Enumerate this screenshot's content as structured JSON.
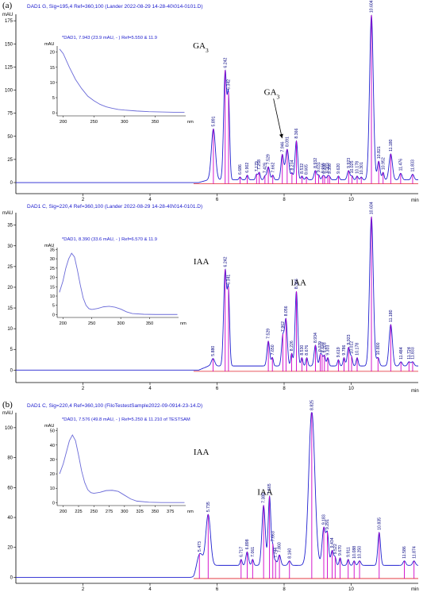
{
  "chart_data": [
    {
      "type": "line",
      "panel_label": "(a)",
      "header": "DAD1 G, Sig=195,4 Ref=360,100 (Lander 2022-08-29 14-28-40\\014-0101.D)",
      "ylabel": "mAU",
      "xlabel": "min",
      "ylim": [
        -12,
        182
      ],
      "xlim": [
        0,
        12
      ],
      "yticks": [
        0,
        25,
        50,
        75,
        100,
        125,
        150,
        175
      ],
      "xticks": [
        2,
        4,
        6,
        8,
        10
      ],
      "compound_labels": [
        {
          "text": "GA",
          "sub": "3",
          "x": 5.28,
          "y": 145
        },
        {
          "text": "GA",
          "sub": "3",
          "x": 7.4,
          "y": 95,
          "arrow_to": [
            7.94,
            48
          ]
        }
      ],
      "baseline": 0,
      "rise": {
        "start": 5.45,
        "end": 5.75,
        "level": 3
      },
      "peaks": [
        {
          "rt": 5.891,
          "height": 55,
          "width": 0.06
        },
        {
          "rt": 6.242,
          "height": 117,
          "width": 0.045
        },
        {
          "rt": 6.342,
          "height": 85,
          "width": 0.035
        },
        {
          "rt": 6.686,
          "height": 3,
          "width": 0.03
        },
        {
          "rt": 6.902,
          "height": 5,
          "width": 0.03
        },
        {
          "rt": 7.179,
          "height": 6,
          "width": 0.03
        },
        {
          "rt": 7.258,
          "height": 8,
          "width": 0.03
        },
        {
          "rt": 7.429,
          "height": 4,
          "width": 0.03
        },
        {
          "rt": 7.529,
          "height": 14,
          "width": 0.04
        },
        {
          "rt": 7.662,
          "height": 5,
          "width": 0.03
        },
        {
          "rt": 7.946,
          "height": 27,
          "width": 0.04
        },
        {
          "rt": 8.091,
          "height": 33,
          "width": 0.05
        },
        {
          "rt": 8.234,
          "height": 7,
          "width": 0.03
        },
        {
          "rt": 8.366,
          "height": 42,
          "width": 0.04
        },
        {
          "rt": 8.532,
          "height": 4,
          "width": 0.03
        },
        {
          "rt": 8.665,
          "height": 3,
          "width": 0.03
        },
        {
          "rt": 8.932,
          "height": 10,
          "width": 0.04
        },
        {
          "rt": 9.031,
          "height": 5,
          "width": 0.03
        },
        {
          "rt": 9.155,
          "height": 4,
          "width": 0.03
        },
        {
          "rt": 9.208,
          "height": 3,
          "width": 0.03
        },
        {
          "rt": 9.303,
          "height": 4,
          "width": 0.03
        },
        {
          "rt": 9.356,
          "height": 3,
          "width": 0.03
        },
        {
          "rt": 9.62,
          "height": 4,
          "width": 0.03
        },
        {
          "rt": 9.923,
          "height": 10,
          "width": 0.04
        },
        {
          "rt": 10.025,
          "height": 4,
          "width": 0.03
        },
        {
          "rt": 10.178,
          "height": 4,
          "width": 0.03
        },
        {
          "rt": 10.301,
          "height": 3,
          "width": 0.03
        },
        {
          "rt": 10.604,
          "height": 178,
          "width": 0.055
        },
        {
          "rt": 10.821,
          "height": 20,
          "width": 0.04
        },
        {
          "rt": 10.952,
          "height": 8,
          "width": 0.03
        },
        {
          "rt": 11.18,
          "height": 28,
          "width": 0.05
        },
        {
          "rt": 11.476,
          "height": 7,
          "width": 0.04
        },
        {
          "rt": 11.833,
          "height": 6,
          "width": 0.04
        }
      ],
      "inset": {
        "header": "*DAD1, 7.943 (23.9 mAU, - ) Ref=5.550 & 11.9",
        "ylabel": "mAU",
        "xlabel": "nm",
        "xlim": [
          190,
          400
        ],
        "ylim": [
          -1,
          22
        ],
        "xticks": [
          200,
          250,
          300,
          350
        ],
        "yticks": [
          0,
          5,
          10,
          15,
          20
        ],
        "x": [
          194,
          200,
          210,
          220,
          230,
          240,
          250,
          260,
          270,
          280,
          290,
          300,
          320,
          340,
          360,
          380,
          398
        ],
        "y": [
          21,
          19.5,
          15,
          11,
          8,
          5.5,
          4,
          2.8,
          2,
          1.5,
          1.1,
          0.9,
          0.6,
          0.4,
          0.3,
          0.2,
          0.2
        ]
      }
    },
    {
      "type": "line",
      "panel_label": "",
      "header": "DAD1 C, Sig=220,4 Ref=360,100 (Lander 2022-08-29 14-28-40\\014-0101.D)",
      "ylabel": "mAU",
      "xlabel": "min",
      "ylim": [
        -3,
        38
      ],
      "xlim": [
        0,
        12
      ],
      "yticks": [
        0,
        5,
        10,
        15,
        20,
        25,
        30,
        35
      ],
      "xticks": [
        2,
        4,
        6,
        8,
        10
      ],
      "compound_labels": [
        {
          "text": "IAA",
          "x": 5.3,
          "y": 25.5
        },
        {
          "text": "IAA",
          "x": 8.2,
          "y": 20.5
        }
      ],
      "baseline": 0,
      "rise": {
        "start": 5.45,
        "end": 5.75,
        "level": 1
      },
      "peaks": [
        {
          "rt": 5.88,
          "height": 1.8,
          "width": 0.05
        },
        {
          "rt": 6.242,
          "height": 23,
          "width": 0.045
        },
        {
          "rt": 6.341,
          "height": 17,
          "width": 0.035
        },
        {
          "rt": 7.529,
          "height": 6,
          "width": 0.04
        },
        {
          "rt": 7.65,
          "height": 2,
          "width": 0.03
        },
        {
          "rt": 7.962,
          "height": 7,
          "width": 0.04
        },
        {
          "rt": 8.056,
          "height": 11,
          "width": 0.04
        },
        {
          "rt": 8.226,
          "height": 3,
          "width": 0.03
        },
        {
          "rt": 8.366,
          "height": 18,
          "width": 0.04
        },
        {
          "rt": 8.53,
          "height": 2,
          "width": 0.03
        },
        {
          "rt": 8.676,
          "height": 2,
          "width": 0.03
        },
        {
          "rt": 8.934,
          "height": 5,
          "width": 0.04
        },
        {
          "rt": 9.079,
          "height": 2.5,
          "width": 0.03
        },
        {
          "rt": 9.133,
          "height": 2,
          "width": 0.03
        },
        {
          "rt": 9.203,
          "height": 2.5,
          "width": 0.03
        },
        {
          "rt": 9.303,
          "height": 2,
          "width": 0.03
        },
        {
          "rt": 9.619,
          "height": 1.5,
          "width": 0.03
        },
        {
          "rt": 9.786,
          "height": 2,
          "width": 0.03
        },
        {
          "rt": 9.923,
          "height": 4.5,
          "width": 0.04
        },
        {
          "rt": 10.012,
          "height": 2,
          "width": 0.03
        },
        {
          "rt": 10.178,
          "height": 2,
          "width": 0.03
        },
        {
          "rt": 10.604,
          "height": 36,
          "width": 0.055
        },
        {
          "rt": 10.8,
          "height": 2,
          "width": 0.04
        },
        {
          "rt": 11.18,
          "height": 10,
          "width": 0.05
        },
        {
          "rt": 11.484,
          "height": 1,
          "width": 0.04
        },
        {
          "rt": 11.724,
          "height": 1,
          "width": 0.04
        },
        {
          "rt": 11.833,
          "height": 1,
          "width": 0.04
        }
      ],
      "inset": {
        "header": "*DAD1, 8.390 (33.6 mAU, - ) Ref=6.570 & 11.9",
        "ylabel": "mAU",
        "xlabel": "nm",
        "xlim": [
          190,
          400
        ],
        "ylim": [
          -1.5,
          36
        ],
        "xticks": [
          200,
          250,
          300,
          350
        ],
        "yticks": [
          0,
          5,
          10,
          15,
          20,
          25,
          30,
          35
        ],
        "x": [
          194,
          200,
          205,
          210,
          215,
          220,
          225,
          230,
          235,
          240,
          245,
          250,
          260,
          270,
          280,
          290,
          300,
          310,
          320,
          340,
          360,
          380,
          398
        ],
        "y": [
          12,
          18,
          25,
          30,
          33,
          31,
          24,
          16,
          9,
          5,
          3.2,
          2.8,
          3.3,
          4.2,
          4.5,
          4,
          3,
          1.5,
          0.6,
          0.2,
          0.1,
          0.1,
          0.1
        ]
      }
    },
    {
      "type": "line",
      "panel_label": "(b)",
      "header": "DAD1 C, Sig=220,4 Ref=360,100 (FiloTestestSample2022-09-0914-23-14.D)",
      "ylabel": "mAU",
      "xlabel": "min",
      "ylim": [
        -4,
        110
      ],
      "xlim": [
        0,
        12
      ],
      "yticks": [
        0,
        20,
        40,
        60,
        80,
        100
      ],
      "xticks": [
        2,
        4,
        6,
        8,
        10
      ],
      "compound_labels": [
        {
          "text": "IAA",
          "x": 5.3,
          "y": 82
        },
        {
          "text": "IAA",
          "x": 7.2,
          "y": 55
        }
      ],
      "baseline": 0,
      "rise": {
        "start": 5.3,
        "end": 5.55,
        "level": 8
      },
      "peaks": [
        {
          "rt": 5.473,
          "height": 10,
          "width": 0.08
        },
        {
          "rt": 5.735,
          "height": 34,
          "width": 0.07
        },
        {
          "rt": 6.717,
          "height": 4,
          "width": 0.03
        },
        {
          "rt": 6.898,
          "height": 9,
          "width": 0.04
        },
        {
          "rt": 7.061,
          "height": 4,
          "width": 0.03
        },
        {
          "rt": 7.388,
          "height": 40,
          "width": 0.05
        },
        {
          "rt": 7.565,
          "height": 46,
          "width": 0.04
        },
        {
          "rt": 7.663,
          "height": 12,
          "width": 0.03
        },
        {
          "rt": 7.744,
          "height": 3,
          "width": 0.03
        },
        {
          "rt": 7.86,
          "height": 7,
          "width": 0.04
        },
        {
          "rt": 8.16,
          "height": 3,
          "width": 0.04
        },
        {
          "rt": 8.825,
          "height": 103,
          "width": 0.09
        },
        {
          "rt": 9.183,
          "height": 25,
          "width": 0.05
        },
        {
          "rt": 9.291,
          "height": 20,
          "width": 0.04
        },
        {
          "rt": 9.434,
          "height": 10,
          "width": 0.04
        },
        {
          "rt": 9.522,
          "height": 5,
          "width": 0.03
        },
        {
          "rt": 9.67,
          "height": 5,
          "width": 0.03
        },
        {
          "rt": 9.911,
          "height": 4,
          "width": 0.03
        },
        {
          "rt": 10.088,
          "height": 3,
          "width": 0.03
        },
        {
          "rt": 10.25,
          "height": 3,
          "width": 0.04
        },
        {
          "rt": 10.835,
          "height": 22,
          "width": 0.04
        },
        {
          "rt": 11.586,
          "height": 3,
          "width": 0.04
        },
        {
          "rt": 11.874,
          "height": 3,
          "width": 0.04
        }
      ],
      "inset": {
        "header": "*DAD1, 7.576 (49.8 mAU, - ) Ref=5.250 & 11.210 of TESTSAM",
        "ylabel": "mAU",
        "xlabel": "nm",
        "xlim": [
          190,
          400
        ],
        "ylim": [
          -2,
          52
        ],
        "xticks": [
          200,
          225,
          250,
          275,
          300,
          325,
          350,
          375
        ],
        "yticks": [
          0,
          10,
          20,
          30,
          40,
          50
        ],
        "x": [
          194,
          200,
          205,
          210,
          215,
          220,
          225,
          230,
          235,
          240,
          245,
          250,
          260,
          270,
          280,
          290,
          300,
          310,
          320,
          340,
          360,
          380,
          398
        ],
        "y": [
          20,
          27,
          35,
          43,
          47,
          43,
          33,
          22,
          14,
          9,
          7,
          6.5,
          7.2,
          8.4,
          8.6,
          7.8,
          5.2,
          2.6,
          1.1,
          0.3,
          0.1,
          0.1,
          0.1
        ]
      }
    }
  ]
}
